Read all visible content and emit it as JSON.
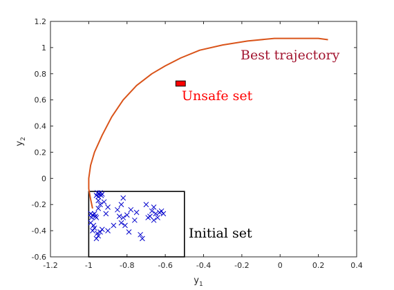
{
  "chart_data": {
    "type": "scatter",
    "xlabel": "y",
    "xlabel_sub": "1",
    "ylabel": "y",
    "ylabel_sub": "2",
    "xlim": [
      -1.2,
      0.4
    ],
    "ylim": [
      -0.6,
      1.2
    ],
    "xticks": [
      -1.2,
      -1,
      -0.8,
      -0.6,
      -0.4,
      -0.2,
      0,
      0.2,
      0.4
    ],
    "yticks": [
      -0.6,
      -0.4,
      -0.2,
      0,
      0.2,
      0.4,
      0.6,
      0.8,
      1,
      1.2
    ],
    "xtick_labels": [
      "-1.2",
      "-1",
      "-0.8",
      "-0.6",
      "-0.4",
      "-0.2",
      "0",
      "0.2",
      "0.4"
    ],
    "ytick_labels": [
      "-0.6",
      "-0.4",
      "-0.2",
      "0",
      "0.2",
      "0.4",
      "0.6",
      "0.8",
      "1",
      "1.2"
    ],
    "grid": false,
    "initial_set": {
      "label": "Initial set",
      "x": [
        -1.0,
        -0.5
      ],
      "y": [
        -0.6,
        -0.1
      ],
      "color": "#000000"
    },
    "unsafe_set": {
      "label": "Unsafe set",
      "x": [
        -0.545,
        -0.495
      ],
      "y": [
        0.705,
        0.745
      ],
      "color": "#ff0000",
      "label_color": "#ff0000"
    },
    "best_trajectory": {
      "label": "Best trajectory",
      "color": "#d95319",
      "label_color": "#a2142f",
      "x": [
        -0.98,
        -0.99,
        -1.0,
        -1.0,
        -0.99,
        -0.97,
        -0.93,
        -0.88,
        -0.82,
        -0.75,
        -0.67,
        -0.6,
        -0.52,
        -0.42,
        -0.3,
        -0.17,
        -0.03,
        0.1,
        0.2,
        0.25
      ],
      "y": [
        -0.23,
        -0.16,
        -0.08,
        0.0,
        0.1,
        0.2,
        0.33,
        0.47,
        0.6,
        0.71,
        0.8,
        0.86,
        0.92,
        0.98,
        1.02,
        1.05,
        1.07,
        1.07,
        1.07,
        1.06
      ]
    },
    "samples": {
      "marker": "x",
      "color": "#0000cc",
      "points": [
        [
          -0.99,
          -0.27
        ],
        [
          -0.985,
          -0.3
        ],
        [
          -0.98,
          -0.28
        ],
        [
          -0.99,
          -0.34
        ],
        [
          -0.975,
          -0.36
        ],
        [
          -0.97,
          -0.27
        ],
        [
          -0.965,
          -0.29
        ],
        [
          -0.96,
          -0.3
        ],
        [
          -0.98,
          -0.4
        ],
        [
          -0.97,
          -0.38
        ],
        [
          -0.955,
          -0.42
        ],
        [
          -0.95,
          -0.44
        ],
        [
          -0.94,
          -0.41
        ],
        [
          -0.93,
          -0.39
        ],
        [
          -0.96,
          -0.46
        ],
        [
          -0.96,
          -0.13
        ],
        [
          -0.955,
          -0.11
        ],
        [
          -0.95,
          -0.14
        ],
        [
          -0.945,
          -0.12
        ],
        [
          -0.94,
          -0.11
        ],
        [
          -0.935,
          -0.13
        ],
        [
          -0.93,
          -0.12
        ],
        [
          -0.95,
          -0.17
        ],
        [
          -0.94,
          -0.2
        ],
        [
          -0.92,
          -0.18
        ],
        [
          -0.9,
          -0.22
        ],
        [
          -0.95,
          -0.23
        ],
        [
          -0.91,
          -0.27
        ],
        [
          -0.9,
          -0.4
        ],
        [
          -0.87,
          -0.36
        ],
        [
          -0.85,
          -0.24
        ],
        [
          -0.83,
          -0.2
        ],
        [
          -0.82,
          -0.15
        ],
        [
          -0.84,
          -0.29
        ],
        [
          -0.82,
          -0.3
        ],
        [
          -0.8,
          -0.28
        ],
        [
          -0.83,
          -0.34
        ],
        [
          -0.81,
          -0.36
        ],
        [
          -0.79,
          -0.41
        ],
        [
          -0.78,
          -0.24
        ],
        [
          -0.76,
          -0.32
        ],
        [
          -0.75,
          -0.26
        ],
        [
          -0.73,
          -0.43
        ],
        [
          -0.72,
          -0.46
        ],
        [
          -0.7,
          -0.2
        ],
        [
          -0.69,
          -0.3
        ],
        [
          -0.68,
          -0.29
        ],
        [
          -0.67,
          -0.25
        ],
        [
          -0.66,
          -0.22
        ],
        [
          -0.65,
          -0.27
        ],
        [
          -0.64,
          -0.3
        ],
        [
          -0.63,
          -0.26
        ],
        [
          -0.61,
          -0.27
        ],
        [
          -0.66,
          -0.32
        ],
        [
          -0.62,
          -0.25
        ]
      ]
    }
  }
}
